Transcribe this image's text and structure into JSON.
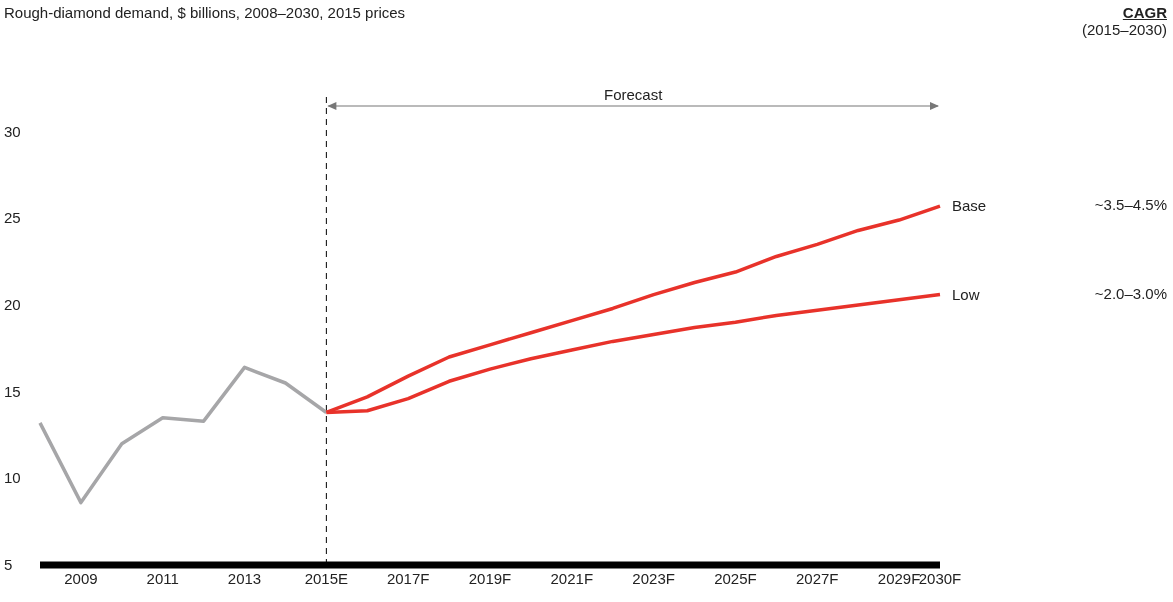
{
  "chart_data": {
    "type": "line",
    "title": "Rough-diamond demand, $ billions, 2008–2030, 2015 prices",
    "categories": [
      null,
      "2009",
      null,
      "2011",
      null,
      "2013",
      null,
      "2015E",
      null,
      "2017F",
      null,
      "2019F",
      null,
      "2021F",
      null,
      "2023F",
      null,
      "2025F",
      null,
      "2027F",
      null,
      "2029F",
      "2030F"
    ],
    "series": [
      {
        "color": "#a6a6a8",
        "values": [
          13.2,
          8.6,
          12.0,
          13.5,
          13.3,
          16.4,
          15.5,
          13.8,
          null,
          null,
          null,
          null,
          null,
          null,
          null,
          null,
          null,
          null,
          null,
          null,
          null,
          null,
          null
        ]
      },
      {
        "name": "Base",
        "color": "#e8322a",
        "values": [
          null,
          null,
          null,
          null,
          null,
          null,
          null,
          13.8,
          14.7,
          15.9,
          17.0,
          17.7,
          18.4,
          19.1,
          19.8,
          20.6,
          21.3,
          21.9,
          22.8,
          23.5,
          24.3,
          24.9,
          25.7
        ]
      },
      {
        "name": "Low",
        "color": "#e8322a",
        "values": [
          null,
          null,
          null,
          null,
          null,
          null,
          null,
          13.8,
          13.9,
          14.6,
          15.6,
          16.3,
          16.9,
          17.4,
          17.9,
          18.3,
          18.7,
          19.0,
          19.4,
          19.7,
          20.0,
          20.3,
          20.6
        ]
      }
    ],
    "ylim": [
      5,
      32
    ],
    "yticks": [
      5,
      10,
      15,
      20,
      25,
      30
    ],
    "marker": "none",
    "line_style": "solid",
    "ref_lines": [
      {
        "axis": "x",
        "value": "2015E",
        "color": "#000000",
        "line_style": "dashed"
      }
    ],
    "annotations": [
      "Forecast",
      "CAGR",
      "(2015–2030)",
      "~3.5–4.5%",
      "~2.0–3.0%"
    ]
  }
}
